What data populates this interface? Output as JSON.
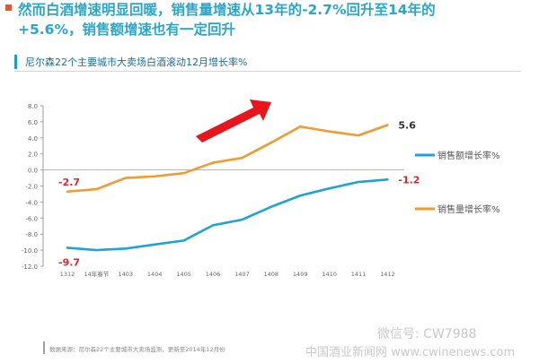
{
  "headline": {
    "line1": "然而白酒增速明显回暖，销售量增速从13年的-2.7%回升至14年的",
    "line2": "+5.6%，销售额增速也有一定回升"
  },
  "subtitle": "尼尔森22个主要城市大卖场白酒滚动12月增长率%",
  "source": "数据来源：尼尔森22个主要城市大卖场监测，更新至2014年12月份",
  "watermark": "微信号: CW7988",
  "watermark2": "中国酒业新闻网 www.cwinenews.com",
  "colors": {
    "sales_value": "#1fa3d4",
    "sales_volume": "#f39a2e",
    "highlight": "#e0242a",
    "arrow": "#e8161c"
  },
  "chart_data": {
    "type": "line",
    "title": "尼尔森22个主要城市大卖场白酒滚动12月增长率%",
    "categories": [
      "1312",
      "14年春节",
      "1403",
      "1404",
      "1405",
      "1406",
      "1407",
      "1408",
      "1409",
      "1410",
      "1411",
      "1412"
    ],
    "ylim": [
      -12.0,
      8.0
    ],
    "yticks": [
      "8.0",
      "6.0",
      "4.0",
      "2.0",
      "0.0",
      "-2.0",
      "-4.0",
      "-6.0",
      "-8.0",
      "-10.0",
      "-12.0"
    ],
    "grid": false,
    "legend_position": "right",
    "series": [
      {
        "name": "销售额增长率%",
        "color": "#1fa3d4",
        "values": [
          -9.7,
          -10.0,
          -9.8,
          -9.3,
          -8.8,
          -6.9,
          -6.2,
          -4.6,
          -3.2,
          -2.3,
          -1.5,
          -1.2
        ]
      },
      {
        "name": "销售量增长率%",
        "color": "#f39a2e",
        "values": [
          -2.7,
          -2.4,
          -1.0,
          -0.8,
          -0.4,
          0.9,
          1.5,
          3.4,
          5.4,
          4.8,
          4.3,
          5.6
        ]
      }
    ],
    "annotations": [
      {
        "text": "-2.7",
        "series": 1,
        "index": 0
      },
      {
        "text": "-9.7",
        "series": 0,
        "index": 0
      },
      {
        "text": "5.6",
        "series": 1,
        "index": 11
      },
      {
        "text": "-1.2",
        "series": 0,
        "index": 11
      }
    ]
  }
}
